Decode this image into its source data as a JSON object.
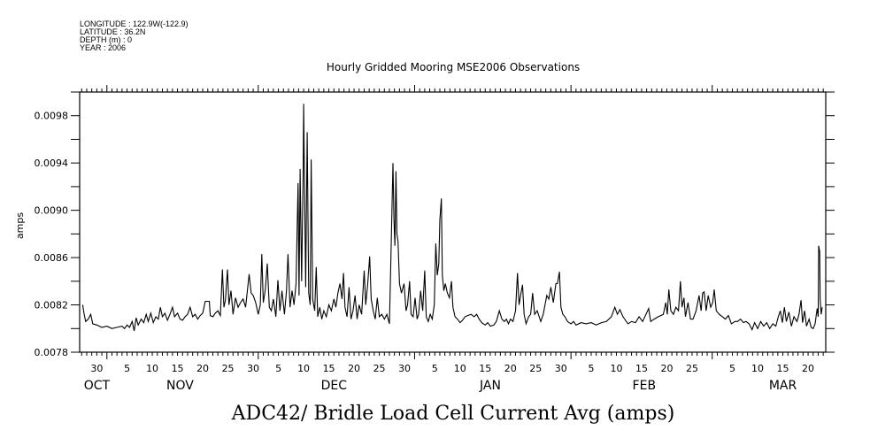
{
  "header": {
    "longitude": "LONGITUDE : 122.9W(-122.9)",
    "latitude": "LATITUDE : 36.2N",
    "depth": "DEPTH (m) : 0",
    "year": "YEAR : 2006"
  },
  "chart_data": {
    "type": "line",
    "title": "Hourly Gridded Mooring MSE2006 Observations",
    "xlabel": "ADC42/ Bridle Load Cell Current Avg (amps)",
    "ylabel": "amps",
    "x_units": "days since 2006-10-01",
    "xlim": [
      25.6,
      173.5
    ],
    "ylim": [
      0.0078,
      0.01
    ],
    "y_ticks": [
      "0.0078",
      "0.0082",
      "0.0086",
      "0.0090",
      "0.0094",
      "0.0098"
    ],
    "y_tick_values": [
      0.0078,
      0.0082,
      0.0086,
      0.009,
      0.0094,
      0.0098
    ],
    "y_minor_step": 0.0002,
    "month_starts": [
      31,
      61,
      92,
      123,
      151
    ],
    "x_day_ticks": [
      {
        "day": 29,
        "label": "30"
      },
      {
        "day": 35,
        "label": "5"
      },
      {
        "day": 40,
        "label": "10"
      },
      {
        "day": 45,
        "label": "15"
      },
      {
        "day": 50,
        "label": "20"
      },
      {
        "day": 55,
        "label": "25"
      },
      {
        "day": 60,
        "label": "30"
      },
      {
        "day": 65,
        "label": "5"
      },
      {
        "day": 70,
        "label": "10"
      },
      {
        "day": 75,
        "label": "15"
      },
      {
        "day": 80,
        "label": "20"
      },
      {
        "day": 85,
        "label": "25"
      },
      {
        "day": 90,
        "label": "30"
      },
      {
        "day": 96,
        "label": "5"
      },
      {
        "day": 101,
        "label": "10"
      },
      {
        "day": 106,
        "label": "15"
      },
      {
        "day": 111,
        "label": "20"
      },
      {
        "day": 116,
        "label": "25"
      },
      {
        "day": 121,
        "label": "30"
      },
      {
        "day": 127,
        "label": "5"
      },
      {
        "day": 132,
        "label": "10"
      },
      {
        "day": 137,
        "label": "15"
      },
      {
        "day": 142,
        "label": "20"
      },
      {
        "day": 147,
        "label": "25"
      },
      {
        "day": 155,
        "label": "5"
      },
      {
        "day": 160,
        "label": "10"
      },
      {
        "day": 165,
        "label": "15"
      },
      {
        "day": 170,
        "label": "20"
      }
    ],
    "month_labels": [
      {
        "day": 29.0,
        "label": "OCT"
      },
      {
        "day": 45.5,
        "label": "NOV"
      },
      {
        "day": 76.0,
        "label": "DEC"
      },
      {
        "day": 107.0,
        "label": "JAN"
      },
      {
        "day": 137.5,
        "label": "FEB"
      },
      {
        "day": 165.0,
        "label": "MAR"
      }
    ],
    "grid": false,
    "series": [
      {
        "name": "ADC42 Bridle Load Cell Current Avg",
        "x": [
          26.2,
          26.5,
          26.8,
          27.3,
          27.8,
          28.2,
          29,
          30,
          31,
          32,
          33,
          34,
          34.5,
          35,
          35.5,
          36,
          36.4,
          36.8,
          37.2,
          37.8,
          38.3,
          38.8,
          39.2,
          39.7,
          40.2,
          40.7,
          41.2,
          41.6,
          42,
          42.5,
          43,
          43.5,
          44,
          44.4,
          45,
          45.5,
          46,
          46.5,
          47,
          47.5,
          48,
          48.5,
          49,
          49.5,
          50,
          50.5,
          51.3,
          51.5,
          52,
          52.5,
          53,
          53.5,
          53.9,
          54.2,
          54.5,
          54.9,
          55.2,
          55.6,
          56,
          56.5,
          57,
          57.5,
          58,
          58.5,
          59.2,
          59.6,
          60,
          60.5,
          61,
          61.4,
          61.7,
          62,
          62.4,
          62.8,
          63.2,
          63.6,
          64,
          64.5,
          64.9,
          65.3,
          65.7,
          66.2,
          66.6,
          66.9,
          67.3,
          67.7,
          68.1,
          68.5,
          68.9,
          69.1,
          69.3,
          69.6,
          69.9,
          70.0,
          70.1,
          70.4,
          70.7,
          71.0,
          71.3,
          71.5,
          71.8,
          72.2,
          72.5,
          72.8,
          73.2,
          73.6,
          74,
          74.5,
          75,
          75.5,
          76,
          76.4,
          76.8,
          77.2,
          77.6,
          77.9,
          78.2,
          78.6,
          79,
          79.4,
          79.8,
          80.2,
          80.6,
          81,
          81.5,
          82.0,
          82.3,
          82.7,
          83.1,
          83.4,
          83.8,
          84.2,
          84.6,
          85,
          85.5,
          86,
          86.5,
          87.0,
          87.3,
          87.7,
          87.9,
          88.1,
          88.3,
          88.5,
          88.7,
          89.0,
          89.4,
          89.9,
          90.3,
          90.6,
          91.0,
          91.3,
          91.7,
          92.1,
          92.5,
          92.8,
          93.2,
          93.6,
          94.0,
          94.3,
          94.7,
          95.1,
          95.5,
          95.9,
          96.2,
          96.5,
          96.8,
          97.0,
          97.3,
          97.5,
          97.8,
          98.1,
          98.5,
          98.9,
          99.3,
          99.6,
          100,
          100.5,
          101,
          101.5,
          102,
          102.5,
          103.2,
          103.8,
          104.3,
          104.8,
          105.3,
          106,
          106.5,
          107,
          107.7,
          108.2,
          108.8,
          109.3,
          109.8,
          110.2,
          110.6,
          111,
          111.5,
          112,
          112.4,
          112.7,
          113,
          113.4,
          113.7,
          114.1,
          114.6,
          115,
          115.4,
          115.8,
          116.3,
          117.0,
          117.5,
          118.2,
          118.6,
          119,
          119.5,
          120,
          120.3,
          120.7,
          121,
          121.4,
          121.8,
          122.3,
          123,
          123.5,
          124,
          125,
          126,
          127,
          128,
          129,
          130,
          131,
          131.7,
          132.2,
          132.7,
          133.3,
          134.3,
          135,
          135.8,
          136.5,
          137.2,
          138.4,
          138.8,
          139.5,
          140.3,
          141.3,
          141.8,
          142.1,
          142.4,
          142.8,
          143.3,
          143.8,
          144.3,
          144.7,
          145,
          145.4,
          145.7,
          146.2,
          146.7,
          147.2,
          147.8,
          148.4,
          148.8,
          149.1,
          149.4,
          149.8,
          150.2,
          150.7,
          151.1,
          151.4,
          151.8,
          152.4,
          153,
          153.6,
          154.2,
          154.8,
          155.5,
          156,
          156.6,
          157.2,
          157.7,
          158.3,
          158.9,
          159.4,
          160,
          160.6,
          161.2,
          161.8,
          162.4,
          163,
          163.6,
          164.1,
          164.5,
          164.9,
          165.3,
          165.7,
          166.2,
          166.7,
          167.2,
          167.8,
          168.2,
          168.6,
          168.9,
          169.3,
          169.7,
          170.2,
          170.6,
          171,
          171.4,
          171.8,
          172.0,
          172.1,
          172.3,
          172.4,
          172.6,
          172.8
        ],
        "y": [
          0.0082,
          0.00812,
          0.00806,
          0.00808,
          0.00812,
          0.00804,
          0.00803,
          0.00801,
          0.00802,
          0.008,
          0.00801,
          0.00802,
          0.008,
          0.00803,
          0.00801,
          0.00806,
          0.00798,
          0.00809,
          0.00803,
          0.00808,
          0.00805,
          0.00812,
          0.00806,
          0.00813,
          0.00805,
          0.0081,
          0.00808,
          0.00818,
          0.0081,
          0.00813,
          0.00807,
          0.00812,
          0.00818,
          0.0081,
          0.00813,
          0.00808,
          0.00807,
          0.0081,
          0.00812,
          0.00818,
          0.0081,
          0.00812,
          0.00808,
          0.00811,
          0.00813,
          0.00823,
          0.00823,
          0.00811,
          0.0081,
          0.00813,
          0.00815,
          0.00811,
          0.0085,
          0.00818,
          0.00824,
          0.0085,
          0.0082,
          0.00832,
          0.00812,
          0.00826,
          0.00818,
          0.00822,
          0.00825,
          0.00818,
          0.00846,
          0.0083,
          0.00828,
          0.00822,
          0.00812,
          0.0082,
          0.00863,
          0.00822,
          0.00833,
          0.00855,
          0.00818,
          0.00815,
          0.00825,
          0.0081,
          0.00841,
          0.00815,
          0.00832,
          0.00812,
          0.00832,
          0.00863,
          0.00818,
          0.00832,
          0.0082,
          0.00838,
          0.00923,
          0.00828,
          0.00935,
          0.0084,
          0.0093,
          0.0099,
          0.00953,
          0.00835,
          0.00966,
          0.0083,
          0.0082,
          0.00943,
          0.00825,
          0.00815,
          0.00852,
          0.0081,
          0.00818,
          0.00808,
          0.00815,
          0.0081,
          0.0082,
          0.00815,
          0.00825,
          0.00818,
          0.0083,
          0.00838,
          0.00825,
          0.00847,
          0.00818,
          0.0081,
          0.00835,
          0.00808,
          0.00815,
          0.00828,
          0.00808,
          0.0082,
          0.00812,
          0.00849,
          0.0082,
          0.00838,
          0.00861,
          0.00825,
          0.00815,
          0.00808,
          0.00826,
          0.0081,
          0.00812,
          0.00808,
          0.00812,
          0.00804,
          0.0086,
          0.0094,
          0.00893,
          0.0087,
          0.00933,
          0.0088,
          0.00874,
          0.00838,
          0.0083,
          0.00838,
          0.00815,
          0.0082,
          0.0084,
          0.00812,
          0.0081,
          0.00826,
          0.00808,
          0.00812,
          0.00832,
          0.00815,
          0.00849,
          0.0081,
          0.00806,
          0.00812,
          0.00808,
          0.0082,
          0.00872,
          0.00845,
          0.00855,
          0.00892,
          0.0091,
          0.00845,
          0.00832,
          0.00838,
          0.0083,
          0.00826,
          0.0084,
          0.00818,
          0.0081,
          0.00808,
          0.00805,
          0.00807,
          0.0081,
          0.00811,
          0.00812,
          0.0081,
          0.00812,
          0.00808,
          0.00805,
          0.00803,
          0.00805,
          0.00802,
          0.00803,
          0.00806,
          0.00815,
          0.00808,
          0.00806,
          0.00808,
          0.00804,
          0.00808,
          0.00806,
          0.00815,
          0.00847,
          0.0082,
          0.00828,
          0.00837,
          0.00812,
          0.00804,
          0.0081,
          0.00812,
          0.0083,
          0.00812,
          0.00815,
          0.00806,
          0.00812,
          0.00828,
          0.00825,
          0.00835,
          0.00822,
          0.00838,
          0.00838,
          0.00848,
          0.00818,
          0.00812,
          0.0081,
          0.00806,
          0.00804,
          0.00806,
          0.00803,
          0.00805,
          0.00804,
          0.00805,
          0.00803,
          0.00805,
          0.00806,
          0.0081,
          0.00818,
          0.00812,
          0.00816,
          0.0081,
          0.00804,
          0.00806,
          0.00805,
          0.0081,
          0.00806,
          0.00817,
          0.00806,
          0.00808,
          0.0081,
          0.00812,
          0.00822,
          0.00812,
          0.00833,
          0.00815,
          0.00812,
          0.00818,
          0.00815,
          0.0084,
          0.00818,
          0.00826,
          0.0081,
          0.00822,
          0.00808,
          0.00808,
          0.00815,
          0.00828,
          0.00815,
          0.0083,
          0.00831,
          0.00815,
          0.00828,
          0.00818,
          0.00822,
          0.00833,
          0.00815,
          0.00812,
          0.0081,
          0.00808,
          0.00811,
          0.00804,
          0.00806,
          0.00806,
          0.00808,
          0.00805,
          0.00806,
          0.00804,
          0.00799,
          0.00805,
          0.008,
          0.00806,
          0.00802,
          0.00805,
          0.008,
          0.00804,
          0.00802,
          0.0081,
          0.00815,
          0.00805,
          0.00818,
          0.00806,
          0.00814,
          0.00802,
          0.0081,
          0.00806,
          0.00812,
          0.00824,
          0.00805,
          0.00815,
          0.00802,
          0.00808,
          0.00801,
          0.008,
          0.00804,
          0.00817,
          0.0081,
          0.0087,
          0.00865,
          0.00825,
          0.00812,
          0.00818
        ]
      }
    ]
  }
}
